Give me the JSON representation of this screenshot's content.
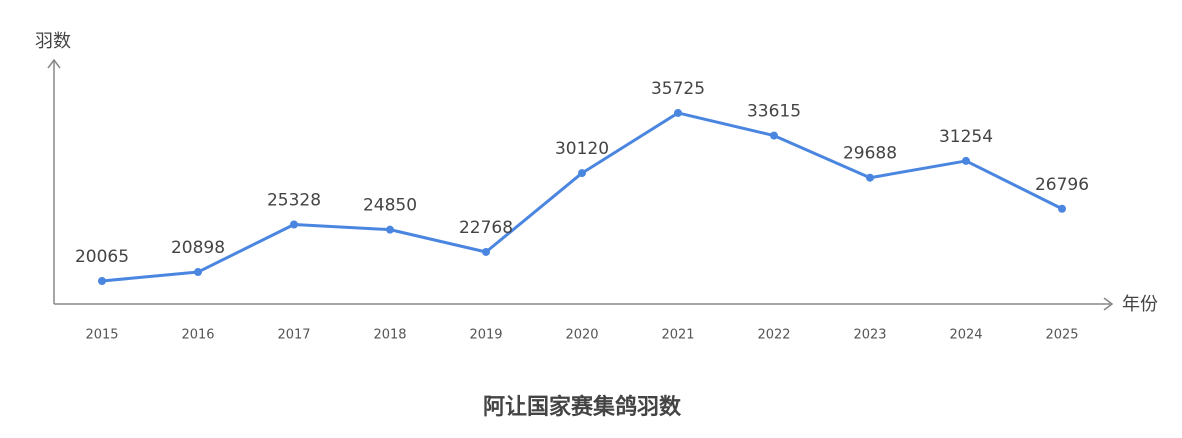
{
  "chart_data": {
    "type": "line",
    "title": "阿让国家赛集鸽羽数",
    "y_label": "羽数",
    "x_label": "年份",
    "categories": [
      "2015",
      "2016",
      "2017",
      "2018",
      "2019",
      "2020",
      "2021",
      "2022",
      "2023",
      "2024",
      "2025"
    ],
    "series": [
      {
        "name": "羽数",
        "color": "#4a86e0",
        "values": [
          20065,
          20898,
          25328,
          24850,
          22768,
          30120,
          35725,
          33615,
          29688,
          31254,
          26796
        ]
      }
    ],
    "ylim": [
      17920,
      40660
    ]
  }
}
